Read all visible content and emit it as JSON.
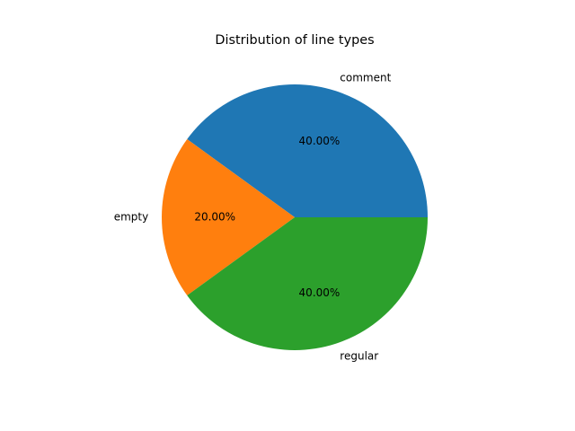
{
  "chart_data": {
    "type": "pie",
    "title": "Distribution of line types",
    "start_angle_deg": 0,
    "direction": "counterclockwise",
    "label_format": "percent with two decimals",
    "slices": [
      {
        "label": "comment",
        "value": 40.0,
        "percent_label": "40.00%",
        "color": "#1f77b4"
      },
      {
        "label": "empty",
        "value": 20.0,
        "percent_label": "20.00%",
        "color": "#ff7f0e"
      },
      {
        "label": "regular",
        "value": 40.0,
        "percent_label": "40.00%",
        "color": "#2ca02c"
      }
    ]
  }
}
